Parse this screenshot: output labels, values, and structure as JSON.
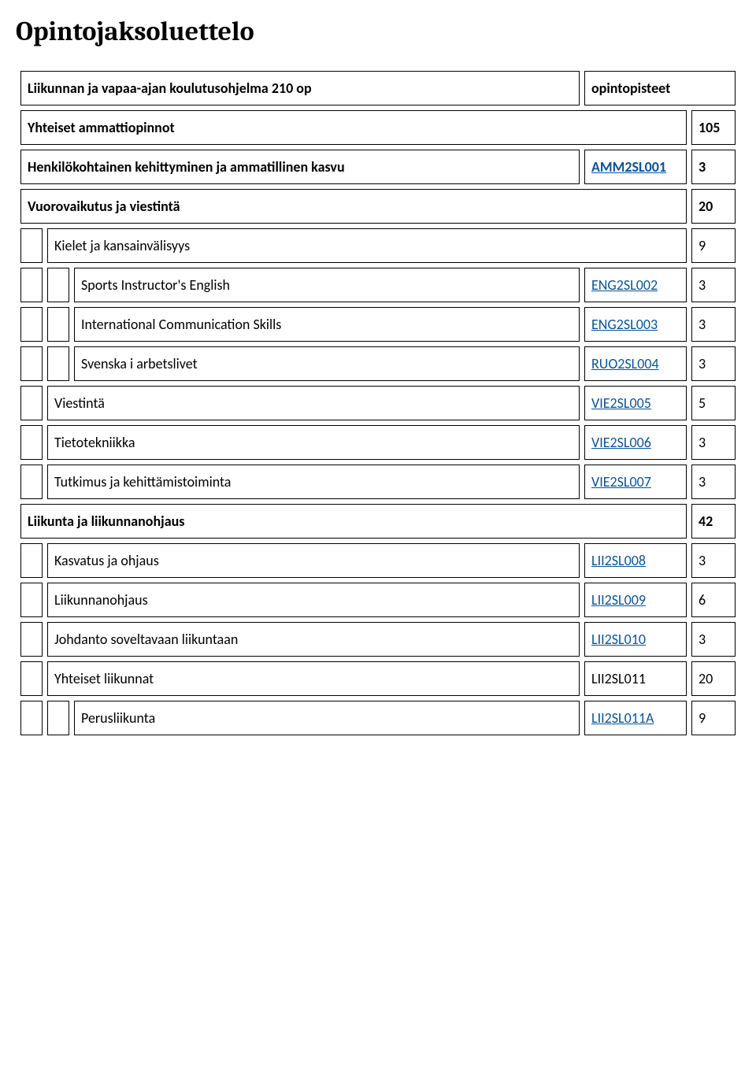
{
  "title": "Opintojaksoluettelo",
  "layout": {
    "indent_width": 28,
    "code_col_width": 130,
    "credit_col_width": 56,
    "border_color": "#000000",
    "background_color": "#ffffff",
    "link_color": "#0b5394",
    "title_fontsize": 34,
    "body_fontsize": 18,
    "row_spacing": 6
  },
  "rows": [
    {
      "indent": 0,
      "name": "Liikunnan ja vapaa-ajan koulutusohjelma 210 op",
      "code": "",
      "credit": "opintopisteet",
      "bold": true,
      "link": false
    },
    {
      "indent": 0,
      "name": "Yhteiset ammattiopinnot",
      "code": "",
      "credit": "105",
      "bold": true,
      "link": false,
      "merge_code": true
    },
    {
      "indent": 0,
      "name": "Henkilökohtainen kehittyminen ja ammatillinen kasvu",
      "code": "AMM2SL001",
      "credit": "3",
      "bold": true,
      "link": true
    },
    {
      "indent": 0,
      "name": "Vuorovaikutus ja viestintä",
      "code": "",
      "credit": "20",
      "bold": true,
      "link": false,
      "merge_code": true
    },
    {
      "indent": 1,
      "name": "Kielet ja kansainvälisyys",
      "code": "",
      "credit": "9",
      "bold": false,
      "link": false,
      "merge_code": true
    },
    {
      "indent": 2,
      "name": "Sports Instructor's English",
      "code": "ENG2SL002",
      "credit": "3",
      "bold": false,
      "link": true
    },
    {
      "indent": 2,
      "name": "International Communication Skills",
      "code": "ENG2SL003",
      "credit": "3",
      "bold": false,
      "link": true
    },
    {
      "indent": 2,
      "name": "Svenska i arbetslivet",
      "code": "RUO2SL004",
      "credit": "3",
      "bold": false,
      "link": true
    },
    {
      "indent": 1,
      "name": "Viestintä",
      "code": "VIE2SL005",
      "credit": "5",
      "bold": false,
      "link": true
    },
    {
      "indent": 1,
      "name": "Tietotekniikka",
      "code": "VIE2SL006",
      "credit": "3",
      "bold": false,
      "link": true
    },
    {
      "indent": 1,
      "name": "Tutkimus ja kehittämistoiminta",
      "code": "VIE2SL007",
      "credit": "3",
      "bold": false,
      "link": true
    },
    {
      "indent": 0,
      "name": "Liikunta ja liikunnanohjaus",
      "code": "",
      "credit": "42",
      "bold": true,
      "link": false,
      "merge_code": true
    },
    {
      "indent": 1,
      "name": "Kasvatus ja ohjaus",
      "code": "LII2SL008",
      "credit": "3",
      "bold": false,
      "link": true
    },
    {
      "indent": 1,
      "name": "Liikunnanohjaus",
      "code": "LII2SL009",
      "credit": "6",
      "bold": false,
      "link": true
    },
    {
      "indent": 1,
      "name": "Johdanto soveltavaan liikuntaan",
      "code": "LII2SL010",
      "credit": "3",
      "bold": false,
      "link": true
    },
    {
      "indent": 1,
      "name": "Yhteiset liikunnat",
      "code": "LII2SL011",
      "credit": "20",
      "bold": false,
      "link": false
    },
    {
      "indent": 2,
      "name": "Perusliikunta",
      "code": "LII2SL011A",
      "credit": "9",
      "bold": false,
      "link": true
    }
  ]
}
